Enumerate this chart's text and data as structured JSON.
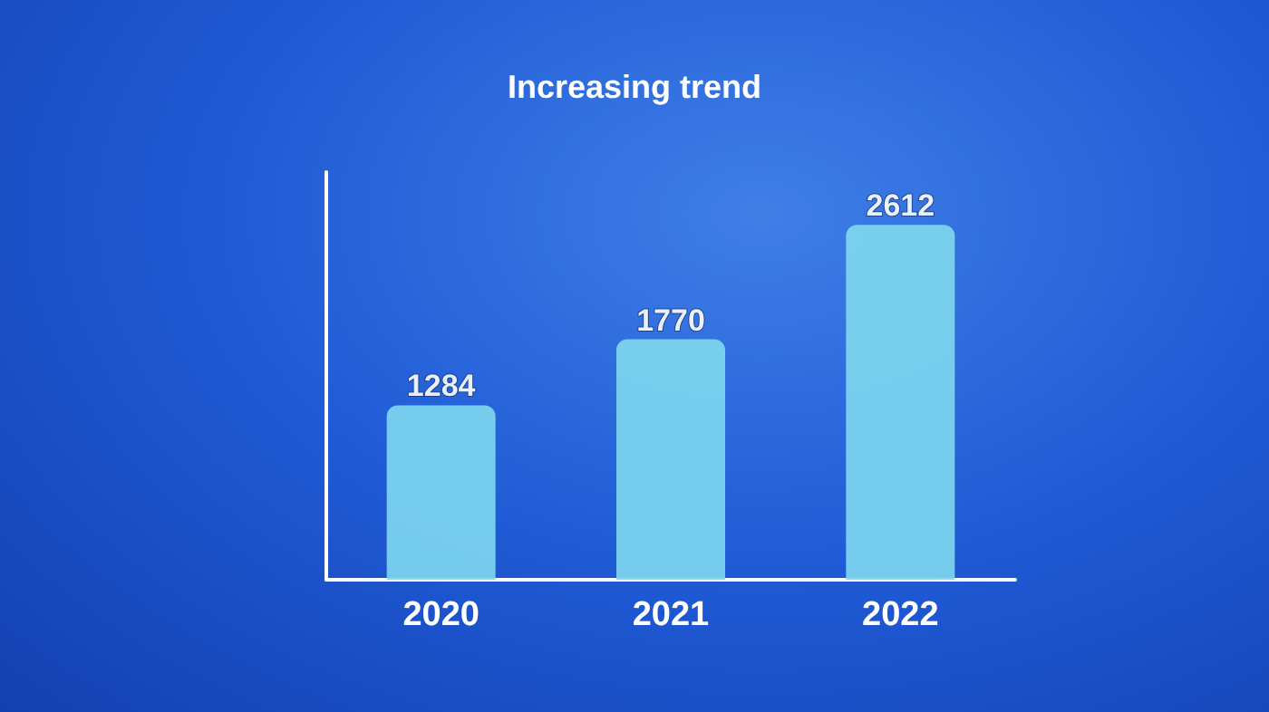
{
  "chart_data": {
    "type": "bar",
    "title": "Increasing trend",
    "categories": [
      "2020",
      "2021",
      "2022"
    ],
    "values": [
      1284,
      1770,
      2612
    ],
    "color": "#7fd8ee",
    "data_labels": true,
    "tick_labels": "x"
  }
}
